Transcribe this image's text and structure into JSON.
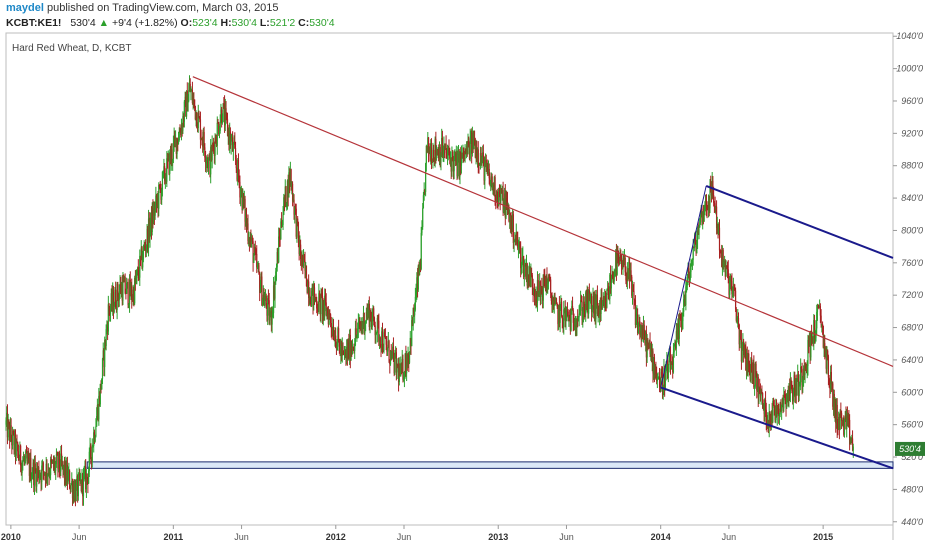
{
  "header": {
    "author": "maydel",
    "published_text": "published on TradingView.com, March 03, 2015",
    "symbol": "KCBT:KE1!",
    "last": "530'4",
    "change_arrow": "▲",
    "change": "+9'4 (+1.82%)",
    "open_label": "O:",
    "open": "523'4",
    "high_label": "H:",
    "high": "530'4",
    "low_label": "L:",
    "low": "521'2",
    "close_label": "C:",
    "close": "530'4"
  },
  "colors": {
    "up": "#2ca02c",
    "down": "#a82020",
    "trendline": "#b5343a",
    "channel": "#1a1a8c",
    "support_fill": "#dbe8f7",
    "support_stroke": "#1a2a6c",
    "price_tag": "#2e7d32"
  },
  "chart_data": {
    "type": "candlestick",
    "title": "Hard Red Wheat, D, KCBT",
    "last_price_label": "530'4",
    "y_range": [
      436,
      1044
    ],
    "y_ticks": [
      {
        "value": 1040,
        "label": "1040'0"
      },
      {
        "value": 1000,
        "label": "1000'0"
      },
      {
        "value": 960,
        "label": "960'0"
      },
      {
        "value": 920,
        "label": "920'0"
      },
      {
        "value": 880,
        "label": "880'0"
      },
      {
        "value": 840,
        "label": "840'0"
      },
      {
        "value": 800,
        "label": "800'0"
      },
      {
        "value": 760,
        "label": "760'0"
      },
      {
        "value": 720,
        "label": "720'0"
      },
      {
        "value": 680,
        "label": "680'0"
      },
      {
        "value": 640,
        "label": "640'0"
      },
      {
        "value": 600,
        "label": "600'0"
      },
      {
        "value": 560,
        "label": "560'0"
      },
      {
        "value": 520,
        "label": "520'0"
      },
      {
        "value": 480,
        "label": "480'0"
      },
      {
        "value": 440,
        "label": "440'0"
      }
    ],
    "x_range": [
      2009.97,
      2015.43
    ],
    "x_ticks": [
      {
        "value": 2010.0,
        "label": "2010",
        "bold": true
      },
      {
        "value": 2010.42,
        "label": "Jun",
        "bold": false
      },
      {
        "value": 2011.0,
        "label": "2011",
        "bold": true
      },
      {
        "value": 2011.42,
        "label": "Jun",
        "bold": false
      },
      {
        "value": 2012.0,
        "label": "2012",
        "bold": true
      },
      {
        "value": 2012.42,
        "label": "Jun",
        "bold": false
      },
      {
        "value": 2013.0,
        "label": "2013",
        "bold": true
      },
      {
        "value": 2013.42,
        "label": "Jun",
        "bold": false
      },
      {
        "value": 2014.0,
        "label": "2014",
        "bold": true
      },
      {
        "value": 2014.42,
        "label": "Jun",
        "bold": false
      },
      {
        "value": 2015.0,
        "label": "2015",
        "bold": true
      }
    ],
    "price_path": [
      [
        2009.97,
        560
      ],
      [
        2010.05,
        520
      ],
      [
        2010.15,
        500
      ],
      [
        2010.3,
        510
      ],
      [
        2010.4,
        478
      ],
      [
        2010.47,
        495
      ],
      [
        2010.55,
        600
      ],
      [
        2010.6,
        700
      ],
      [
        2010.68,
        730
      ],
      [
        2010.75,
        720
      ],
      [
        2010.85,
        800
      ],
      [
        2010.95,
        870
      ],
      [
        2011.05,
        930
      ],
      [
        2011.1,
        975
      ],
      [
        2011.15,
        940
      ],
      [
        2011.22,
        880
      ],
      [
        2011.3,
        950
      ],
      [
        2011.38,
        890
      ],
      [
        2011.45,
        810
      ],
      [
        2011.55,
        720
      ],
      [
        2011.6,
        690
      ],
      [
        2011.67,
        820
      ],
      [
        2011.72,
        870
      ],
      [
        2011.78,
        770
      ],
      [
        2011.85,
        720
      ],
      [
        2011.95,
        700
      ],
      [
        2012.05,
        640
      ],
      [
        2012.2,
        700
      ],
      [
        2012.3,
        660
      ],
      [
        2012.4,
        620
      ],
      [
        2012.45,
        650
      ],
      [
        2012.52,
        760
      ],
      [
        2012.56,
        900
      ],
      [
        2012.65,
        900
      ],
      [
        2012.75,
        880
      ],
      [
        2012.85,
        910
      ],
      [
        2012.95,
        860
      ],
      [
        2013.05,
        830
      ],
      [
        2013.15,
        760
      ],
      [
        2013.25,
        720
      ],
      [
        2013.3,
        740
      ],
      [
        2013.35,
        700
      ],
      [
        2013.45,
        690
      ],
      [
        2013.55,
        710
      ],
      [
        2013.65,
        700
      ],
      [
        2013.72,
        760
      ],
      [
        2013.8,
        750
      ],
      [
        2013.85,
        690
      ],
      [
        2013.95,
        640
      ],
      [
        2014.0,
        610
      ],
      [
        2014.08,
        640
      ],
      [
        2014.15,
        720
      ],
      [
        2014.25,
        820
      ],
      [
        2014.32,
        850
      ],
      [
        2014.38,
        760
      ],
      [
        2014.45,
        720
      ],
      [
        2014.5,
        650
      ],
      [
        2014.58,
        620
      ],
      [
        2014.65,
        570
      ],
      [
        2014.72,
        580
      ],
      [
        2014.78,
        600
      ],
      [
        2014.85,
        610
      ],
      [
        2014.92,
        660
      ],
      [
        2014.98,
        700
      ],
      [
        2015.02,
        640
      ],
      [
        2015.08,
        570
      ],
      [
        2015.15,
        555
      ],
      [
        2015.19,
        530
      ]
    ],
    "drawings": [
      {
        "kind": "trendline",
        "x1": 2011.12,
        "y1": 990,
        "x2": 2015.43,
        "y2": 632
      },
      {
        "kind": "channel-line",
        "x1": 2014.28,
        "y1": 855,
        "x2": 2015.43,
        "y2": 766
      },
      {
        "kind": "channel-line",
        "x1": 2014.0,
        "y1": 606,
        "x2": 2015.43,
        "y2": 506
      },
      {
        "kind": "channel-connector",
        "x1": 2014.0,
        "y1": 606,
        "x2": 2014.28,
        "y2": 855
      },
      {
        "kind": "support-zone",
        "x1": 2010.47,
        "x2": 2015.43,
        "y_low": 506,
        "y_high": 514
      }
    ]
  }
}
